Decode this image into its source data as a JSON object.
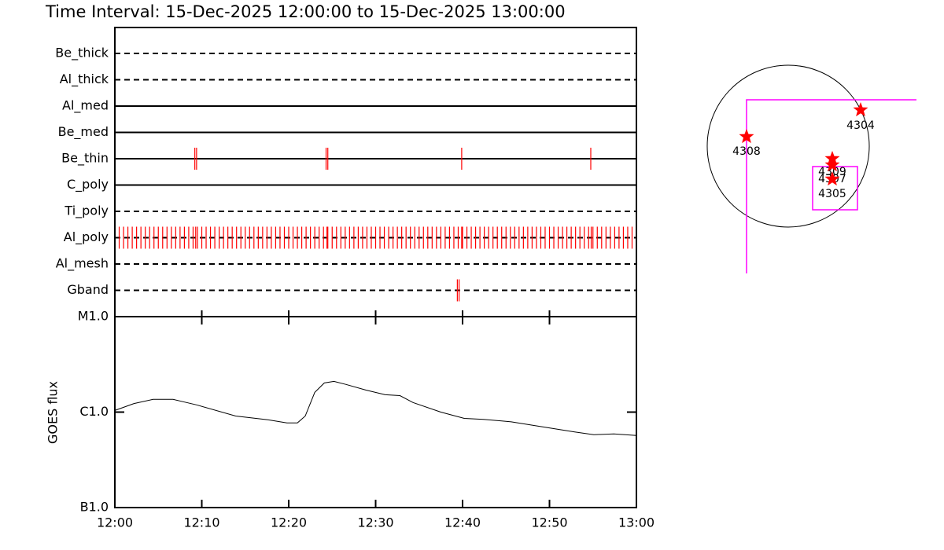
{
  "title": "Time Interval: 15-Dec-2025 12:00:00 to 15-Dec-2025 13:00:00",
  "chart_data": [
    {
      "type": "timeline",
      "xlim": [
        0,
        60
      ],
      "xticks": [
        0,
        10,
        20,
        30,
        40,
        50,
        60
      ],
      "event_color": "#ff0000",
      "rows": [
        {
          "name": "Be_thick",
          "style": "dashed",
          "events": []
        },
        {
          "name": "Al_thick",
          "style": "dashed",
          "events": []
        },
        {
          "name": "Al_med",
          "style": "solid",
          "events": []
        },
        {
          "name": "Be_med",
          "style": "solid",
          "events": []
        },
        {
          "name": "Be_thin",
          "style": "solid",
          "events": [
            9.2,
            9.4,
            24.3,
            24.5,
            39.9,
            54.75
          ]
        },
        {
          "name": "C_poly",
          "style": "solid",
          "events": []
        },
        {
          "name": "Ti_poly",
          "style": "dashed",
          "events": []
        },
        {
          "name": "Al_poly",
          "style": "dashed",
          "events": [
            0.5,
            1,
            1.5,
            2,
            2.5,
            3,
            3.5,
            4,
            4.5,
            5,
            5.5,
            6,
            6.5,
            7,
            7.5,
            8,
            8.5,
            9,
            9.3,
            9.5,
            10,
            10.5,
            11,
            11.5,
            12,
            12.5,
            13,
            13.5,
            14,
            14.5,
            15,
            15.5,
            16,
            16.5,
            17,
            17.5,
            18,
            18.5,
            19,
            19.5,
            20,
            20.5,
            21,
            21.5,
            22,
            22.5,
            23,
            23.5,
            24,
            24.4,
            24.5,
            25,
            25.5,
            26,
            26.5,
            27,
            27.5,
            28,
            28.5,
            29,
            29.5,
            30,
            30.5,
            31,
            31.5,
            32,
            32.5,
            33,
            33.5,
            34,
            34.5,
            35,
            35.5,
            36,
            36.5,
            37,
            37.5,
            38,
            38.5,
            39,
            39.5,
            39.9,
            40,
            40.5,
            41,
            41.5,
            42,
            42.5,
            43,
            43.5,
            44,
            44.5,
            45,
            45.5,
            46,
            46.5,
            47,
            47.5,
            48,
            48.5,
            49,
            49.5,
            50,
            50.5,
            51,
            51.5,
            52,
            52.5,
            53,
            53.5,
            54,
            54.5,
            54.8,
            55,
            55.5,
            56,
            56.5,
            57,
            57.5,
            58,
            58.5,
            59,
            59.5
          ]
        },
        {
          "name": "Al_mesh",
          "style": "dashed",
          "events": []
        },
        {
          "name": "Gband",
          "style": "dashed",
          "events": [
            39.4,
            39.6
          ]
        }
      ]
    },
    {
      "type": "line",
      "ylabel": "GOES flux",
      "log_scale": true,
      "color": "#000000",
      "xlim": [
        0,
        60
      ],
      "xticks": [
        {
          "value": 0,
          "label": "12:00"
        },
        {
          "value": 10,
          "label": "12:10"
        },
        {
          "value": 20,
          "label": "12:20"
        },
        {
          "value": 30,
          "label": "12:30"
        },
        {
          "value": 40,
          "label": "12:40"
        },
        {
          "value": 50,
          "label": "12:50"
        },
        {
          "value": 60,
          "label": "13:00"
        }
      ],
      "ylim": [
        1e-07,
        1e-05
      ],
      "yticks": [
        {
          "value": 1e-07,
          "label": "B1.0"
        },
        {
          "value": 1e-06,
          "label": "C1.0"
        },
        {
          "value": 1e-05,
          "label": "M1.0"
        }
      ],
      "x": [
        0,
        2.2,
        4.4,
        6.7,
        9.4,
        13.9,
        17.6,
        19.8,
        21.0,
        21.9,
        23.0,
        24.1,
        25.2,
        26.6,
        28.9,
        31.1,
        32.8,
        34.3,
        37.5,
        40.2,
        42.4,
        45.6,
        49.2,
        52.9,
        55.1,
        57.4,
        60
      ],
      "values": [
        1.04e-06,
        1.23e-06,
        1.36e-06,
        1.36e-06,
        1.19e-06,
        9.1e-07,
        8.3e-07,
        7.7e-07,
        7.7e-07,
        9.1e-07,
        1.61e-06,
        2.02e-06,
        2.1e-06,
        1.95e-06,
        1.7e-06,
        1.52e-06,
        1.49e-06,
        1.26e-06,
        1e-06,
        8.6e-07,
        8.4e-07,
        7.9e-07,
        7e-07,
        6.2e-07,
        5.8e-07,
        5.9e-07,
        5.7e-07
      ]
    },
    {
      "type": "map",
      "marker_color": "#ff0000",
      "fov_color": "#ff00ff",
      "regions": [
        "4304",
        "4308",
        "4309",
        "4307",
        "4305"
      ]
    }
  ]
}
